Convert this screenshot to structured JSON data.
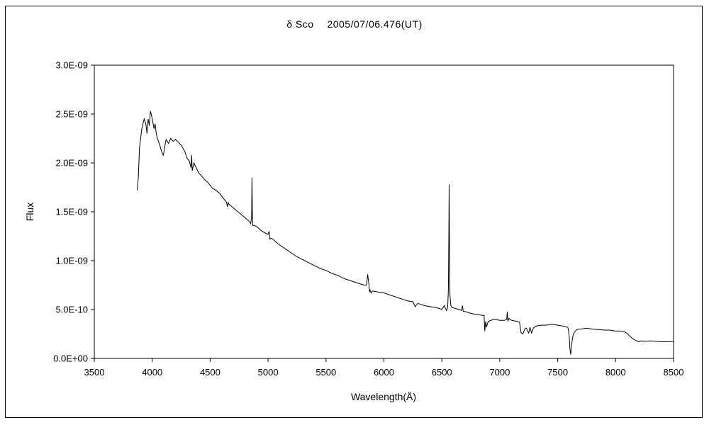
{
  "chart_data": {
    "type": "line",
    "title": "δ Sco　 2005/07/06.476(UT)",
    "xlabel": "Wavelength(Å)",
    "ylabel": "Flux",
    "xlim": [
      3500,
      8500
    ],
    "ylim": [
      0,
      3e-09
    ],
    "x_ticks": [
      3500,
      4000,
      4500,
      5000,
      5500,
      6000,
      6500,
      7000,
      7500,
      8000,
      8500
    ],
    "x_tick_labels": [
      "3500",
      "4000",
      "4500",
      "5000",
      "5500",
      "6000",
      "6500",
      "7000",
      "7500",
      "8000",
      "8500"
    ],
    "y_ticks": [
      0,
      5e-10,
      1e-09,
      1.5e-09,
      2e-09,
      2.5e-09,
      3e-09
    ],
    "y_tick_labels": [
      "0.0E+00",
      "5.0E-10",
      "1.0E-09",
      "1.5E-09",
      "2.0E-09",
      "2.5E-09",
      "3.0E-09"
    ],
    "grid": false,
    "legend": "none",
    "line_color": "#000000",
    "series": [
      {
        "x": [
          3870,
          3880,
          3890,
          3910,
          3930,
          3945,
          3955,
          3965,
          3975,
          3985,
          3995,
          4005,
          4015,
          4025,
          4035,
          4045,
          4060,
          4080,
          4095,
          4100,
          4105,
          4120,
          4140,
          4160,
          4180,
          4200,
          4220,
          4250,
          4280,
          4300,
          4320,
          4335,
          4340,
          4345,
          4360,
          4380,
          4400,
          4430,
          4460,
          4480,
          4500,
          4520,
          4550,
          4580,
          4600,
          4620,
          4640,
          4650,
          4655,
          4660,
          4670,
          4690,
          4720,
          4750,
          4780,
          4800,
          4820,
          4840,
          4850,
          4858,
          4861,
          4864,
          4868,
          4880,
          4900,
          4920,
          4950,
          4980,
          5000,
          5010,
          5015,
          5030,
          5060,
          5100,
          5150,
          5200,
          5250,
          5300,
          5350,
          5400,
          5450,
          5500,
          5550,
          5600,
          5650,
          5700,
          5750,
          5800,
          5830,
          5850,
          5860,
          5870,
          5876,
          5880,
          5890,
          5900,
          5950,
          6000,
          6050,
          6100,
          6150,
          6200,
          6250,
          6270,
          6290,
          6300,
          6350,
          6400,
          6450,
          6480,
          6500,
          6520,
          6540,
          6550,
          6556,
          6560,
          6563,
          6566,
          6570,
          6578,
          6590,
          6620,
          6650,
          6670,
          6678,
          6685,
          6700,
          6750,
          6800,
          6850,
          6865,
          6870,
          6878,
          6885,
          6900,
          6950,
          7000,
          7040,
          7060,
          7065,
          7070,
          7080,
          7100,
          7150,
          7170,
          7185,
          7200,
          7215,
          7230,
          7240,
          7250,
          7260,
          7275,
          7290,
          7300,
          7310,
          7350,
          7400,
          7450,
          7500,
          7550,
          7580,
          7590,
          7600,
          7605,
          7612,
          7620,
          7630,
          7640,
          7660,
          7680,
          7700,
          7750,
          7800,
          7850,
          7900,
          7950,
          8000,
          8050,
          8080,
          8100,
          8120,
          8150,
          8180,
          8200,
          8220,
          8250,
          8300,
          8350,
          8400,
          8450,
          8500
        ],
        "y": [
          1.72e-09,
          1.85e-09,
          2.15e-09,
          2.35e-09,
          2.45e-09,
          2.4e-09,
          2.3e-09,
          2.45e-09,
          2.38e-09,
          2.53e-09,
          2.48e-09,
          2.42e-09,
          2.35e-09,
          2.4e-09,
          2.3e-09,
          2.25e-09,
          2.2e-09,
          2.12e-09,
          2.08e-09,
          2.1e-09,
          2.15e-09,
          2.24e-09,
          2.2e-09,
          2.25e-09,
          2.22e-09,
          2.24e-09,
          2.22e-09,
          2.18e-09,
          2.12e-09,
          2.05e-09,
          2.02e-09,
          1.95e-09,
          2.08e-09,
          1.92e-09,
          2e-09,
          1.95e-09,
          1.9e-09,
          1.86e-09,
          1.82e-09,
          1.8e-09,
          1.77e-09,
          1.74e-09,
          1.72e-09,
          1.69e-09,
          1.66e-09,
          1.63e-09,
          1.6e-09,
          1.55e-09,
          1.6e-09,
          1.58e-09,
          1.57e-09,
          1.55e-09,
          1.52e-09,
          1.49e-09,
          1.46e-09,
          1.44e-09,
          1.42e-09,
          1.4e-09,
          1.38e-09,
          1.45e-09,
          1.85e-09,
          1.5e-09,
          1.36e-09,
          1.36e-09,
          1.35e-09,
          1.33e-09,
          1.3e-09,
          1.28e-09,
          1.27e-09,
          1.3e-09,
          1.22e-09,
          1.23e-09,
          1.2e-09,
          1.16e-09,
          1.12e-09,
          1.08e-09,
          1.04e-09,
          1.01e-09,
          9.8e-10,
          9.5e-10,
          9.2e-10,
          9e-10,
          8.7e-10,
          8.5e-10,
          8.2e-10,
          8e-10,
          7.8e-10,
          7.6e-10,
          7.5e-10,
          7.5e-10,
          8.6e-10,
          7.6e-10,
          6.8e-10,
          7e-10,
          6.7e-10,
          6.9e-10,
          6.8e-10,
          6.7e-10,
          6.5e-10,
          6.3e-10,
          6.1e-10,
          5.9e-10,
          5.8e-10,
          5.3e-10,
          5.6e-10,
          5.6e-10,
          5.4e-10,
          5.3e-10,
          5.2e-10,
          5.1e-10,
          5e-10,
          5.4e-10,
          4.9e-10,
          5.2e-10,
          7e-10,
          1.2e-09,
          1.78e-09,
          1.1e-09,
          6.5e-10,
          5.4e-10,
          5.2e-10,
          5.1e-10,
          5e-10,
          4.9e-10,
          5.4e-10,
          4.8e-10,
          4.8e-10,
          4.6e-10,
          4.5e-10,
          4.4e-10,
          4.4e-10,
          2.8e-10,
          3.8e-10,
          3.2e-10,
          3.8e-10,
          4e-10,
          3.9e-10,
          3.9e-10,
          4e-10,
          4.8e-10,
          3.8e-10,
          4.1e-10,
          3.9e-10,
          3.8e-10,
          3.7e-10,
          2.6e-10,
          2.5e-10,
          3e-10,
          3.1e-10,
          2.8e-10,
          2.6e-10,
          3.2e-10,
          2.6e-10,
          3.1e-10,
          3.2e-10,
          3.3e-10,
          3.4e-10,
          3.4e-10,
          3.5e-10,
          3.4e-10,
          3.3e-10,
          3.2e-10,
          3.1e-10,
          2.2e-10,
          1e-10,
          4e-11,
          1.4e-10,
          2.2e-10,
          2.6e-10,
          2.9e-10,
          3e-10,
          3e-10,
          3.1e-10,
          3e-10,
          2.95e-10,
          2.9e-10,
          2.9e-10,
          2.8e-10,
          2.8e-10,
          2.7e-10,
          2.55e-10,
          2.3e-10,
          2e-10,
          1.8e-10,
          1.7e-10,
          1.8e-10,
          1.75e-10,
          1.8e-10,
          1.75e-10,
          1.7e-10,
          1.7e-10,
          1.75e-10
        ]
      }
    ]
  }
}
